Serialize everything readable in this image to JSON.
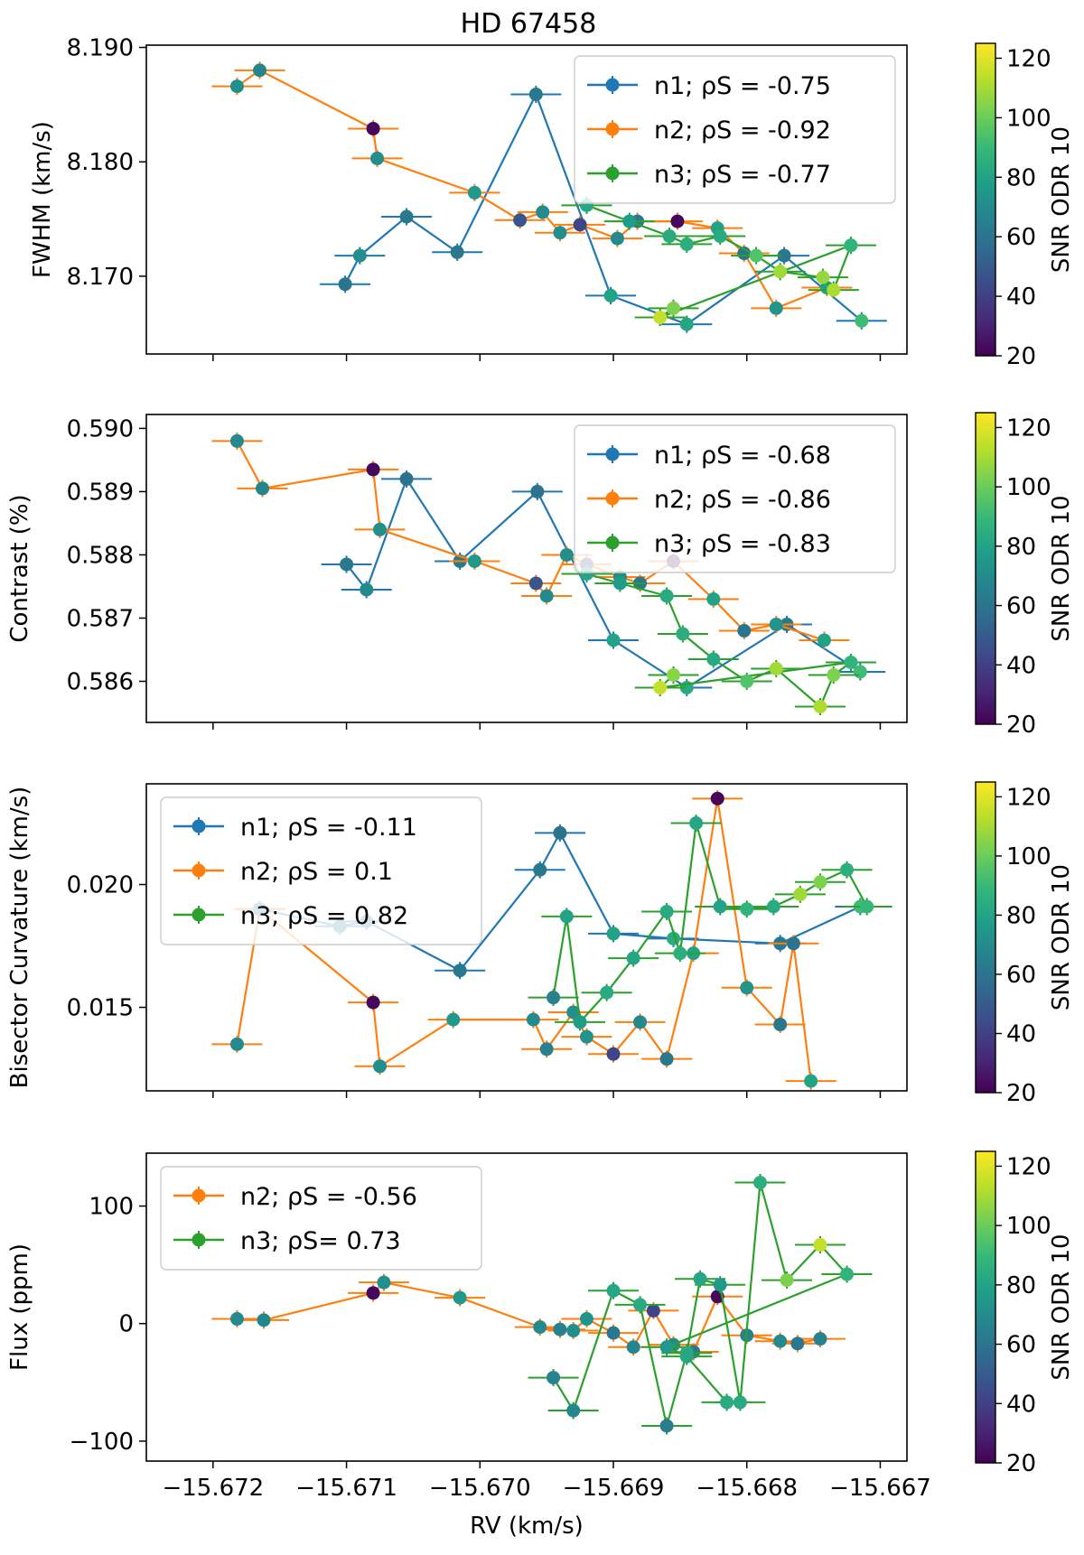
{
  "title": "HD 67458",
  "colors": {
    "n1": "#1f77b4",
    "n2": "#ff7f0e",
    "n3": "#2ca02c",
    "colormap": [
      "#440154",
      "#482878",
      "#3e4989",
      "#31688e",
      "#26828e",
      "#1f9e89",
      "#35b779",
      "#6ece58",
      "#b5de2b",
      "#fde725"
    ]
  },
  "chart_data": [
    {
      "type": "scatter",
      "title": "HD 67458",
      "xlabel": "RV (km/s)",
      "ylabel": "FWHM (km/s)",
      "xlim": [
        -15.6725,
        -15.6668
      ],
      "ylim": [
        8.1632,
        8.1902
      ],
      "xticks": [
        -15.672,
        -15.671,
        -15.67,
        -15.669,
        -15.668,
        -15.667
      ],
      "xtick_labels": [
        "−15.672",
        "−15.671",
        "−15.670",
        "−15.669",
        "−15.668",
        "−15.667"
      ],
      "yticks": [
        8.17,
        8.18,
        8.19
      ],
      "ytick_labels": [
        "8.170",
        "8.180",
        "8.190"
      ],
      "legend": [
        "n1; ρS = -0.75",
        "n2; ρS = -0.92",
        "n3; ρS = -0.77"
      ],
      "legend_position": "upper right",
      "colorbar": {
        "label": "SNR ODR 10",
        "range": [
          20,
          125
        ],
        "ticks": [
          20,
          40,
          60,
          80,
          100,
          120
        ]
      },
      "series": [
        {
          "name": "n1",
          "x": [
            -15.67101,
            -15.6709,
            -15.67055,
            -15.67017,
            -15.66958,
            -15.66902,
            -15.66845,
            -15.66772,
            -15.66714
          ],
          "y": [
            8.1693,
            8.1718,
            8.1752,
            8.1721,
            8.1859,
            8.1683,
            8.1658,
            8.1718,
            8.1661
          ],
          "snr": [
            60,
            72,
            62,
            62,
            62,
            80,
            82,
            62,
            92
          ]
        },
        {
          "name": "n2",
          "x": [
            -15.67182,
            -15.67165,
            -15.6708,
            -15.67077,
            -15.67004,
            -15.6697,
            -15.66953,
            -15.6694,
            -15.66925,
            -15.66897,
            -15.66882,
            -15.66852,
            -15.66822,
            -15.66802,
            -15.66778,
            -15.6674
          ],
          "y": [
            8.1866,
            8.188,
            8.1829,
            8.1803,
            8.1773,
            8.1749,
            8.1756,
            8.1738,
            8.1745,
            8.1733,
            8.1748,
            8.1748,
            8.1742,
            8.172,
            8.1672,
            8.169
          ],
          "snr": [
            72,
            68,
            22,
            72,
            76,
            48,
            70,
            72,
            42,
            70,
            62,
            22,
            80,
            60,
            74,
            80
          ]
        },
        {
          "name": "n3",
          "x": [
            -15.6692,
            -15.66888,
            -15.66858,
            -15.66845,
            -15.6682,
            -15.66793,
            -15.66775,
            -15.66743,
            -15.66735,
            -15.66722,
            -15.66865,
            -15.66855
          ],
          "y": [
            8.1762,
            8.1748,
            8.1735,
            8.1728,
            8.1735,
            8.1718,
            8.1704,
            8.1699,
            8.1688,
            8.1727,
            8.1664,
            8.1672
          ],
          "snr": [
            82,
            78,
            84,
            86,
            84,
            96,
            110,
            108,
            112,
            88,
            116,
            104
          ]
        }
      ]
    },
    {
      "type": "scatter",
      "xlabel": "RV (km/s)",
      "ylabel": "Contrast (%)",
      "xlim": [
        -15.6725,
        -15.6668
      ],
      "ylim": [
        0.58535,
        0.59022
      ],
      "yticks": [
        0.586,
        0.587,
        0.588,
        0.589,
        0.59
      ],
      "ytick_labels": [
        "0.586",
        "0.587",
        "0.588",
        "0.589",
        "0.590"
      ],
      "legend": [
        "n1; ρS = -0.68",
        "n2; ρS = -0.86",
        "n3; ρS = -0.83"
      ],
      "legend_position": "upper right",
      "colorbar": {
        "label": "SNR ODR 10",
        "range": [
          20,
          125
        ],
        "ticks": [
          20,
          40,
          60,
          80,
          100,
          120
        ]
      },
      "series": [
        {
          "name": "n1",
          "x": [
            -15.671,
            -15.67085,
            -15.67055,
            -15.67015,
            -15.66957,
            -15.669,
            -15.66845,
            -15.6677,
            -15.66715
          ],
          "y": [
            0.58785,
            0.58745,
            0.5892,
            0.5879,
            0.589,
            0.58665,
            0.5859,
            0.5869,
            0.58615
          ],
          "snr": [
            62,
            70,
            60,
            62,
            60,
            80,
            84,
            62,
            92
          ]
        },
        {
          "name": "n2",
          "x": [
            -15.67182,
            -15.67163,
            -15.6708,
            -15.67075,
            -15.67004,
            -15.66958,
            -15.6695,
            -15.66935,
            -15.6692,
            -15.66895,
            -15.6688,
            -15.66855,
            -15.66825,
            -15.66802,
            -15.66778,
            -15.66742
          ],
          "y": [
            0.5898,
            0.58905,
            0.58935,
            0.5884,
            0.5879,
            0.58755,
            0.58735,
            0.588,
            0.58785,
            0.58765,
            0.58755,
            0.5879,
            0.5873,
            0.5868,
            0.5869,
            0.58665
          ],
          "snr": [
            70,
            68,
            22,
            72,
            76,
            48,
            70,
            72,
            42,
            70,
            62,
            22,
            80,
            60,
            74,
            80
          ]
        },
        {
          "name": "n3",
          "x": [
            -15.6692,
            -15.66895,
            -15.6686,
            -15.66848,
            -15.66825,
            -15.668,
            -15.66778,
            -15.66745,
            -15.66735,
            -15.66722,
            -15.66865,
            -15.66855
          ],
          "y": [
            0.5877,
            0.58755,
            0.58735,
            0.58675,
            0.58635,
            0.586,
            0.5862,
            0.5856,
            0.5861,
            0.5863,
            0.5859,
            0.5861
          ],
          "snr": [
            82,
            78,
            84,
            86,
            84,
            96,
            110,
            112,
            104,
            88,
            116,
            106
          ]
        }
      ]
    },
    {
      "type": "scatter",
      "xlabel": "RV (km/s)",
      "ylabel": "Bisector Curvature (km/s)",
      "xlim": [
        -15.6725,
        -15.6668
      ],
      "ylim": [
        0.0116,
        0.0241
      ],
      "yticks": [
        0.015,
        0.02
      ],
      "ytick_labels": [
        "0.015",
        "0.020"
      ],
      "legend": [
        "n1; ρS = -0.11",
        "n2; ρS = 0.1",
        "n3; ρS = 0.82"
      ],
      "legend_position": "upper left",
      "colorbar": {
        "label": "SNR ODR 10",
        "range": [
          20,
          125
        ],
        "ticks": [
          20,
          40,
          60,
          80,
          100,
          120
        ]
      },
      "series": [
        {
          "name": "n1",
          "x": [
            -15.67165,
            -15.67105,
            -15.67085,
            -15.67015,
            -15.66955,
            -15.6694,
            -15.669,
            -15.66855,
            -15.66775,
            -15.66715
          ],
          "y": [
            0.019,
            0.0183,
            0.0185,
            0.0165,
            0.0206,
            0.0221,
            0.018,
            0.0178,
            0.0176,
            0.0191
          ],
          "snr": [
            62,
            62,
            62,
            62,
            62,
            60,
            80,
            84,
            62,
            92
          ]
        },
        {
          "name": "n2",
          "x": [
            -15.67182,
            -15.67165,
            -15.6708,
            -15.67075,
            -15.6702,
            -15.6696,
            -15.6695,
            -15.6693,
            -15.6692,
            -15.669,
            -15.6688,
            -15.6686,
            -15.6684,
            -15.66822,
            -15.668,
            -15.66775,
            -15.66765,
            -15.66752
          ],
          "y": [
            0.0135,
            0.019,
            0.0152,
            0.0126,
            0.0145,
            0.0145,
            0.0133,
            0.0148,
            0.0138,
            0.0131,
            0.0144,
            0.0129,
            0.0172,
            0.0235,
            0.0158,
            0.0143,
            0.0176,
            0.012
          ],
          "snr": [
            70,
            68,
            22,
            72,
            76,
            70,
            66,
            72,
            74,
            42,
            70,
            62,
            80,
            22,
            74,
            62,
            60,
            80
          ]
        },
        {
          "name": "n3",
          "x": [
            -15.66945,
            -15.66935,
            -15.66925,
            -15.66905,
            -15.66885,
            -15.6686,
            -15.6685,
            -15.66838,
            -15.6682,
            -15.668,
            -15.6678,
            -15.6676,
            -15.66745,
            -15.66725,
            -15.6671
          ],
          "y": [
            0.0154,
            0.0187,
            0.0144,
            0.0156,
            0.017,
            0.0189,
            0.0172,
            0.0225,
            0.0191,
            0.019,
            0.0191,
            0.0196,
            0.0201,
            0.0206,
            0.0191
          ],
          "snr": [
            66,
            80,
            78,
            84,
            82,
            84,
            86,
            82,
            80,
            88,
            84,
            110,
            104,
            86,
            90
          ]
        }
      ]
    },
    {
      "type": "scatter",
      "xlabel": "RV (km/s)",
      "ylabel": "Flux (ppm)",
      "xlim": [
        -15.6725,
        -15.6668
      ],
      "ylim": [
        -117,
        145
      ],
      "xticks": [
        -15.672,
        -15.671,
        -15.67,
        -15.669,
        -15.668,
        -15.667
      ],
      "xtick_labels": [
        "−15.672",
        "−15.671",
        "−15.670",
        "−15.669",
        "−15.668",
        "−15.667"
      ],
      "yticks": [
        -100,
        0,
        100
      ],
      "ytick_labels": [
        "−100",
        "0",
        "100"
      ],
      "legend": [
        "n2; ρS = -0.56",
        "n3; ρS= 0.73"
      ],
      "legend_position": "upper left",
      "colorbar": {
        "label": "SNR ODR 10",
        "range": [
          20,
          125
        ],
        "ticks": [
          20,
          40,
          60,
          80,
          100,
          120
        ]
      },
      "series": [
        {
          "name": "n2",
          "x": [
            -15.67182,
            -15.67162,
            -15.6708,
            -15.67072,
            -15.67015,
            -15.66955,
            -15.6694,
            -15.6693,
            -15.6692,
            -15.669,
            -15.66885,
            -15.6687,
            -15.66855,
            -15.6684,
            -15.66822,
            -15.668,
            -15.66775,
            -15.66762,
            -15.66745
          ],
          "y": [
            4,
            3,
            26,
            35,
            22,
            -3,
            -5,
            -6,
            4,
            -8,
            -20,
            11,
            -18,
            -24,
            23,
            -10,
            -15,
            -17,
            -13
          ],
          "snr": [
            70,
            68,
            22,
            72,
            76,
            70,
            66,
            72,
            74,
            62,
            68,
            42,
            70,
            62,
            22,
            66,
            70,
            62,
            66
          ]
        },
        {
          "name": "n3",
          "x": [
            -15.66945,
            -15.6693,
            -15.669,
            -15.6688,
            -15.6686,
            -15.66845,
            -15.66835,
            -15.6682,
            -15.66805,
            -15.6679,
            -15.6677,
            -15.66745,
            -15.66725,
            -15.6686,
            -15.66845,
            -15.66815
          ],
          "y": [
            -46,
            -74,
            28,
            16,
            -87,
            -25,
            38,
            33,
            -67,
            120,
            37,
            67,
            42,
            -20,
            -28,
            -67
          ],
          "snr": [
            66,
            68,
            82,
            84,
            64,
            84,
            82,
            76,
            84,
            86,
            104,
            116,
            88,
            76,
            82,
            84
          ]
        }
      ]
    }
  ]
}
